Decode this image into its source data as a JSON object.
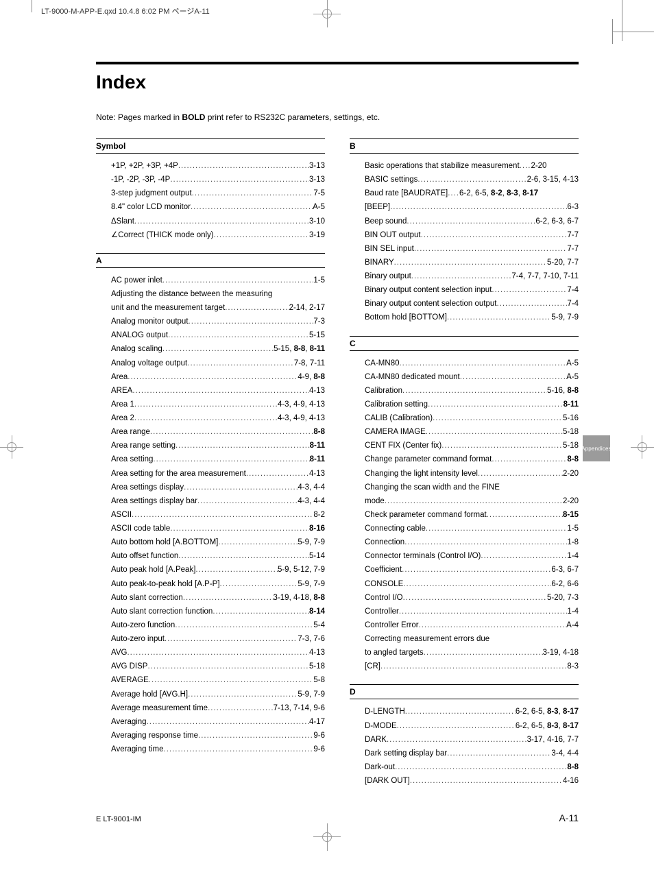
{
  "meta": {
    "header_line": "LT-9000-M-APP-E.qxd  10.4.8  6:02 PM  ページA-11"
  },
  "title": "Index",
  "note_prefix": "Note: Pages marked in ",
  "note_bold": "BOLD",
  "note_suffix": " print refer to RS232C parameters, settings, etc.",
  "side_tab": "Appendices",
  "footer": {
    "doc": "E LT-9001-IM",
    "page": "A-11"
  },
  "left_sections": [
    {
      "head": "Symbol",
      "items": [
        {
          "term": "+1P, +2P, +3P, +4P",
          "page": "3-13"
        },
        {
          "term": "-1P, -2P, -3P, -4P",
          "page": "3-13"
        },
        {
          "term": "3-step judgment output",
          "page": "7-5"
        },
        {
          "term": "8.4\" color LCD monitor",
          "page": "A-5"
        },
        {
          "term": "ΔSlant",
          "page": "3-10"
        },
        {
          "term": "∠Correct (THICK mode only)",
          "page": "3-19"
        }
      ]
    },
    {
      "head": "A",
      "items": [
        {
          "term": "AC power inlet",
          "page": "1-5"
        },
        {
          "wrap": "Adjusting the distance between the measuring"
        },
        {
          "term": "unit and the measurement target",
          "page": "2-14, 2-17"
        },
        {
          "term": "Analog monitor output",
          "page": "7-3"
        },
        {
          "term": "ANALOG output",
          "page": "5-15"
        },
        {
          "term": "Analog scaling",
          "page_html": "5-15, <b>8-8</b>, <b>8-11</b>"
        },
        {
          "term": "Analog voltage output",
          "page": "7-8, 7-11"
        },
        {
          "term": "Area",
          "page_html": "4-9, <b>8-8</b>"
        },
        {
          "term": "AREA",
          "page": "4-13"
        },
        {
          "term": "Area 1",
          "page": "4-3, 4-9, 4-13"
        },
        {
          "term": "Area 2",
          "page": "4-3, 4-9, 4-13"
        },
        {
          "term": "Area range",
          "page_html": "<b>8-8</b>"
        },
        {
          "term": "Area range setting",
          "page_html": "<b>8-11</b>"
        },
        {
          "term": "Area setting",
          "page_html": "<b>8-11</b>"
        },
        {
          "term": "Area setting for the area measurement",
          "page": "4-13"
        },
        {
          "term": "Area settings display",
          "page": "4-3, 4-4"
        },
        {
          "term": "Area settings display bar",
          "page": "4-3, 4-4"
        },
        {
          "term": "ASCII",
          "page": "8-2"
        },
        {
          "term": "ASCII code table",
          "page_html": "<b>8-16</b>"
        },
        {
          "term": "Auto bottom hold [A.BOTTOM]",
          "page": "5-9, 7-9"
        },
        {
          "term": "Auto offset function",
          "page": "5-14"
        },
        {
          "term": "Auto peak hold [A.Peak]",
          "page": "5-9, 5-12, 7-9"
        },
        {
          "term": "Auto peak-to-peak hold [A.P-P]",
          "page": "5-9, 7-9"
        },
        {
          "term": "Auto slant correction",
          "page_html": "3-19, 4-18, <b>8-8</b>"
        },
        {
          "term": "Auto slant correction function",
          "page_html": "<b>8-14</b>"
        },
        {
          "term": "Auto-zero function",
          "page": "5-4"
        },
        {
          "term": "Auto-zero input",
          "page": "7-3, 7-6"
        },
        {
          "term": "AVG",
          "page": "4-13"
        },
        {
          "term": "AVG DISP",
          "page": "5-18"
        },
        {
          "term": "AVERAGE",
          "page": "5-8"
        },
        {
          "term": "Average hold [AVG.H]",
          "page": "5-9, 7-9"
        },
        {
          "term": "Average measurement time",
          "page": "7-13, 7-14, 9-6"
        },
        {
          "term": "Averaging",
          "page": "4-17"
        },
        {
          "term": "Averaging response time",
          "page": "9-6"
        },
        {
          "term": "Averaging time",
          "page": "9-6"
        }
      ]
    }
  ],
  "right_sections": [
    {
      "head": "B",
      "items": [
        {
          "term": "Basic operations that stabilize measurement",
          "page": "2-20",
          "tight": true
        },
        {
          "term": "BASIC settings",
          "page": "2-6, 3-15, 4-13"
        },
        {
          "term": "Baud rate [BAUDRATE]",
          "page_html": "6-2, 6-5, <b>8-2</b>, <b>8-3</b>, <b>8-17</b>",
          "tight": true
        },
        {
          "term": "[BEEP]",
          "page": "6-3"
        },
        {
          "term": "Beep sound",
          "page": "6-2, 6-3, 6-7"
        },
        {
          "term": "BIN OUT output",
          "page": "7-7"
        },
        {
          "term": "BIN SEL input",
          "page": "7-7"
        },
        {
          "term": "BINARY",
          "page": "5-20, 7-7"
        },
        {
          "term": "Binary output",
          "page": "7-4, 7-7, 7-10, 7-11"
        },
        {
          "term": "Binary output content selection input",
          "page": "7-4"
        },
        {
          "term": "Binary output content selection output",
          "page": "7-4"
        },
        {
          "term": "Bottom hold [BOTTOM]",
          "page": "5-9, 7-9"
        }
      ]
    },
    {
      "head": "C",
      "items": [
        {
          "term": "CA-MN80",
          "page": "A-5"
        },
        {
          "term": "CA-MN80 dedicated mount",
          "page": "A-5"
        },
        {
          "term": "Calibration",
          "page_html": "5-16, <b>8-8</b>"
        },
        {
          "term": "Calibration setting",
          "page_html": "<b>8-11</b>"
        },
        {
          "term": "CALIB (Calibration)",
          "page": "5-16"
        },
        {
          "term": "CAMERA IMAGE",
          "page": "5-18"
        },
        {
          "term": "CENT FIX (Center fix)",
          "page": "5-18"
        },
        {
          "term": "Change parameter command format",
          "page_html": "<b>8-8</b>"
        },
        {
          "term": "Changing the light intensity level",
          "page": "2-20"
        },
        {
          "wrap": "Changing the scan width and the FINE"
        },
        {
          "term": "mode",
          "page": "2-20"
        },
        {
          "term": "Check parameter command format",
          "page_html": "<b>8-15</b>"
        },
        {
          "term": "Connecting cable",
          "page": "1-5"
        },
        {
          "term": "Connection",
          "page": "1-8"
        },
        {
          "term": "Connector terminals (Control I/O)",
          "page": "1-4"
        },
        {
          "term": "Coefficient",
          "page": "6-3, 6-7"
        },
        {
          "term": "CONSOLE",
          "page": "6-2, 6-6"
        },
        {
          "term": "Control I/O",
          "page": "5-20, 7-3"
        },
        {
          "term": "Controller",
          "page": "1-4"
        },
        {
          "term": "Controller Error",
          "page": "A-4"
        },
        {
          "wrap": "Correcting measurement errors due"
        },
        {
          "term": "to angled targets",
          "page": "3-19, 4-18"
        },
        {
          "term": "[CR]",
          "page": "8-3"
        }
      ]
    },
    {
      "head": "D",
      "items": [
        {
          "term": "D-LENGTH",
          "page_html": "6-2, 6-5, <b>8-3</b>, <b>8-17</b>"
        },
        {
          "term": "D-MODE",
          "page_html": "6-2, 6-5, <b>8-3</b>, <b>8-17</b>"
        },
        {
          "term": "DARK",
          "page": "3-17, 4-16, 7-7"
        },
        {
          "term": "Dark setting display bar",
          "page": "3-4, 4-4"
        },
        {
          "term": "Dark-out",
          "page_html": "<b>8-8</b>"
        },
        {
          "term": "[DARK OUT]",
          "page": "4-16"
        }
      ]
    }
  ]
}
